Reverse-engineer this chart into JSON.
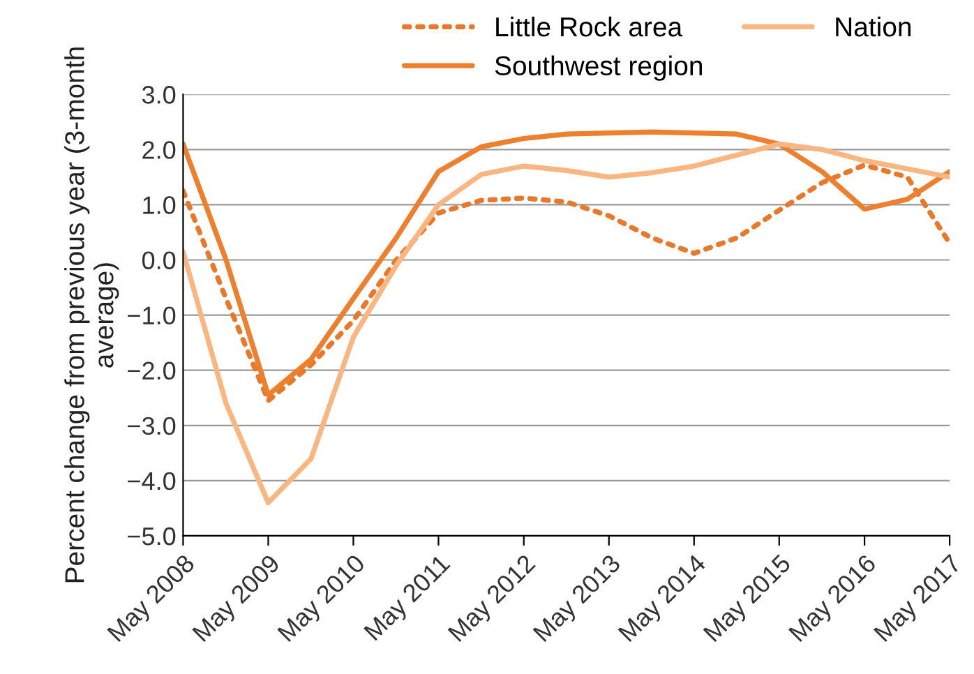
{
  "chart_data": {
    "type": "line",
    "ylabel": "Percent change from previous year (3-month average)",
    "x": [
      "2008-05",
      "2008-11",
      "2009-05",
      "2009-11",
      "2010-05",
      "2010-11",
      "2011-05",
      "2011-11",
      "2012-05",
      "2012-11",
      "2013-05",
      "2013-11",
      "2014-05",
      "2014-11",
      "2015-05",
      "2015-11",
      "2016-05",
      "2016-11",
      "2017-05"
    ],
    "series": [
      {
        "name": "Little Rock area",
        "color": "#e8782a",
        "line_style": "dotted",
        "values": [
          1.25,
          -0.7,
          -2.55,
          -1.9,
          -1.1,
          0.0,
          0.85,
          1.08,
          1.12,
          1.05,
          0.8,
          0.4,
          0.12,
          0.4,
          0.9,
          1.4,
          1.72,
          1.5,
          0.3
        ]
      },
      {
        "name": "Southwest region",
        "color": "#ee7f2d",
        "line_style": "solid",
        "values": [
          2.1,
          0.0,
          -2.45,
          -1.8,
          -0.7,
          0.4,
          1.6,
          2.05,
          2.2,
          2.28,
          2.3,
          2.32,
          2.3,
          2.28,
          2.1,
          1.6,
          0.92,
          1.1,
          1.6
        ]
      },
      {
        "name": "Nation",
        "color": "#f9b681",
        "line_style": "solid",
        "values": [
          0.15,
          -2.6,
          -4.4,
          -3.6,
          -1.4,
          -0.1,
          1.0,
          1.55,
          1.7,
          1.62,
          1.5,
          1.58,
          1.7,
          1.9,
          2.1,
          2.0,
          1.8,
          1.65,
          1.5
        ]
      }
    ],
    "xlim": [
      "2008-05",
      "2017-05"
    ],
    "xticks": [
      {
        "value": "2008-05",
        "label": "May 2008"
      },
      {
        "value": "2009-05",
        "label": "May 2009"
      },
      {
        "value": "2010-05",
        "label": "May 2010"
      },
      {
        "value": "2011-05",
        "label": "May 2011"
      },
      {
        "value": "2012-05",
        "label": "May 2012"
      },
      {
        "value": "2013-05",
        "label": "May 2013"
      },
      {
        "value": "2014-05",
        "label": "May 2014"
      },
      {
        "value": "2015-05",
        "label": "May 2015"
      },
      {
        "value": "2016-05",
        "label": "May 2016"
      },
      {
        "value": "2017-05",
        "label": "May 2017"
      }
    ],
    "ylim": [
      -5,
      3
    ],
    "yticks": [
      {
        "value": 3,
        "label": "3.0"
      },
      {
        "value": 2,
        "label": "2.0"
      },
      {
        "value": 1,
        "label": "1.0"
      },
      {
        "value": 0,
        "label": "0.0"
      },
      {
        "value": -1,
        "label": "−1.0"
      },
      {
        "value": -2,
        "label": "−2.0"
      },
      {
        "value": -3,
        "label": "−3.0"
      },
      {
        "value": -4,
        "label": "−4.0"
      },
      {
        "value": -5,
        "label": "−5.0"
      }
    ],
    "grid": "y",
    "legend": "top"
  }
}
